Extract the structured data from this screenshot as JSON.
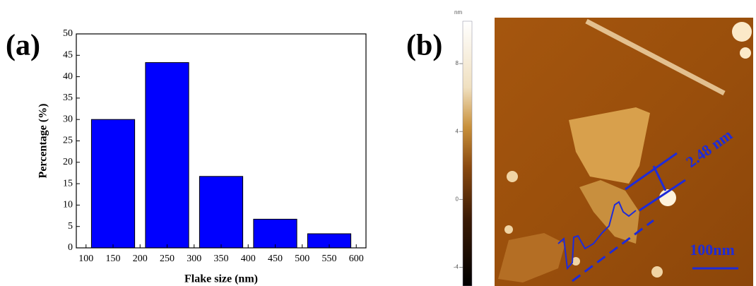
{
  "chart_data": [
    {
      "type": "histogram",
      "panel_label": "(a)",
      "xlabel": "Flake size (nm)",
      "ylabel": "Percentage (%)",
      "bins": [
        100,
        200,
        300,
        400,
        500,
        600
      ],
      "values": [
        30,
        43.3,
        16.7,
        6.7,
        3.3
      ],
      "color": "#0000ff",
      "xlim": [
        82,
        618
      ],
      "xticks": [
        100,
        150,
        200,
        250,
        300,
        350,
        400,
        450,
        500,
        550,
        600
      ],
      "ylim": [
        0,
        50
      ],
      "yticks": [
        0,
        5,
        10,
        15,
        20,
        25,
        30,
        35,
        40,
        45,
        50
      ]
    },
    {
      "type": "image",
      "panel_label": "(b)",
      "colorbar_unit": "nm",
      "colorbar_lim": [
        -5.1,
        10.5
      ],
      "colorbar_ticks": [
        8,
        4,
        0,
        -4
      ],
      "annotations": [
        "2.48 nm",
        "100nm"
      ]
    }
  ]
}
